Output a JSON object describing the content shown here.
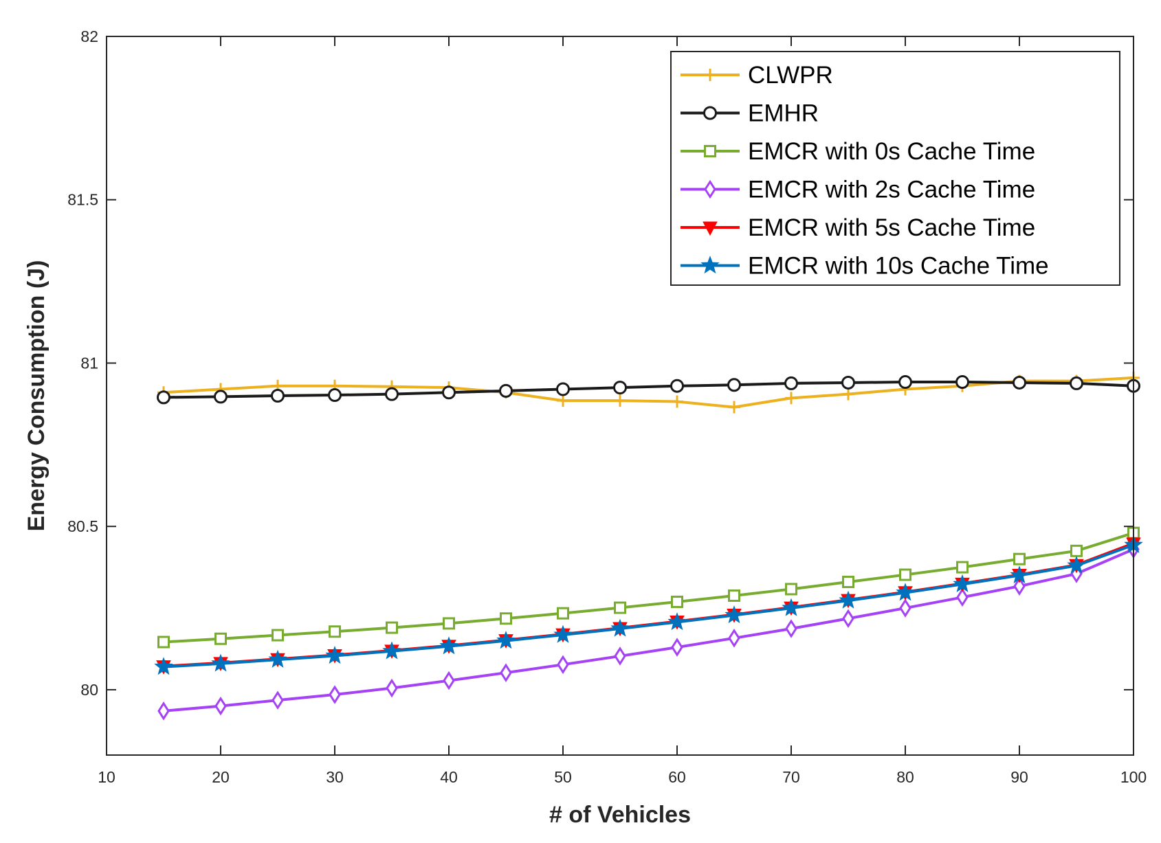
{
  "chart_data": {
    "type": "line",
    "title": "",
    "xlabel": "# of Vehicles",
    "ylabel": "Energy Consumption (J)",
    "xlim": [
      10,
      100
    ],
    "ylim": [
      79.8,
      82
    ],
    "xticks": [
      10,
      20,
      30,
      40,
      50,
      60,
      70,
      80,
      90,
      100
    ],
    "yticks": [
      80,
      80.5,
      81,
      81.5,
      82
    ],
    "grid": false,
    "legend_position": "top-right",
    "x": [
      15,
      20,
      25,
      30,
      35,
      40,
      45,
      50,
      55,
      60,
      65,
      70,
      75,
      80,
      85,
      90,
      95,
      100
    ],
    "series": [
      {
        "name": "CLWPR",
        "color": "#EDB120",
        "marker": "plus",
        "values": [
          80.91,
          80.92,
          80.93,
          80.93,
          80.928,
          80.925,
          80.91,
          80.885,
          80.885,
          80.882,
          80.865,
          80.893,
          80.905,
          80.92,
          80.93,
          80.945,
          80.945,
          80.955
        ]
      },
      {
        "name": "EMHR",
        "color": "#1a1a1a",
        "marker": "circle",
        "values": [
          80.895,
          80.897,
          80.9,
          80.902,
          80.905,
          80.91,
          80.915,
          80.92,
          80.925,
          80.93,
          80.933,
          80.938,
          80.94,
          80.942,
          80.942,
          80.94,
          80.938,
          80.93
        ]
      },
      {
        "name": "EMCR with 0s Cache Time",
        "color": "#77AC30",
        "marker": "square",
        "values": [
          80.146,
          80.156,
          80.167,
          80.178,
          80.19,
          80.203,
          80.218,
          80.234,
          80.251,
          80.269,
          80.288,
          80.308,
          80.33,
          80.352,
          80.375,
          80.4,
          80.425,
          80.48
        ]
      },
      {
        "name": "EMCR with 2s Cache Time",
        "color": "#A642F5",
        "marker": "diamond",
        "values": [
          79.935,
          79.95,
          79.968,
          79.985,
          80.005,
          80.028,
          80.052,
          80.077,
          80.103,
          80.13,
          80.158,
          80.187,
          80.218,
          80.25,
          80.283,
          80.317,
          80.355,
          80.43
        ]
      },
      {
        "name": "EMCR with 5s Cache Time",
        "color": "#FF0000",
        "marker": "triangle-down",
        "values": [
          80.072,
          80.082,
          80.094,
          80.106,
          80.12,
          80.135,
          80.152,
          80.17,
          80.189,
          80.209,
          80.23,
          80.252,
          80.275,
          80.299,
          80.325,
          80.352,
          80.382,
          80.448
        ]
      },
      {
        "name": "EMCR with 10s Cache Time",
        "color": "#0072BD",
        "marker": "star",
        "values": [
          80.07,
          80.08,
          80.092,
          80.104,
          80.118,
          80.133,
          80.15,
          80.168,
          80.187,
          80.207,
          80.228,
          80.25,
          80.273,
          80.297,
          80.323,
          80.35,
          80.38,
          80.443
        ]
      }
    ]
  }
}
